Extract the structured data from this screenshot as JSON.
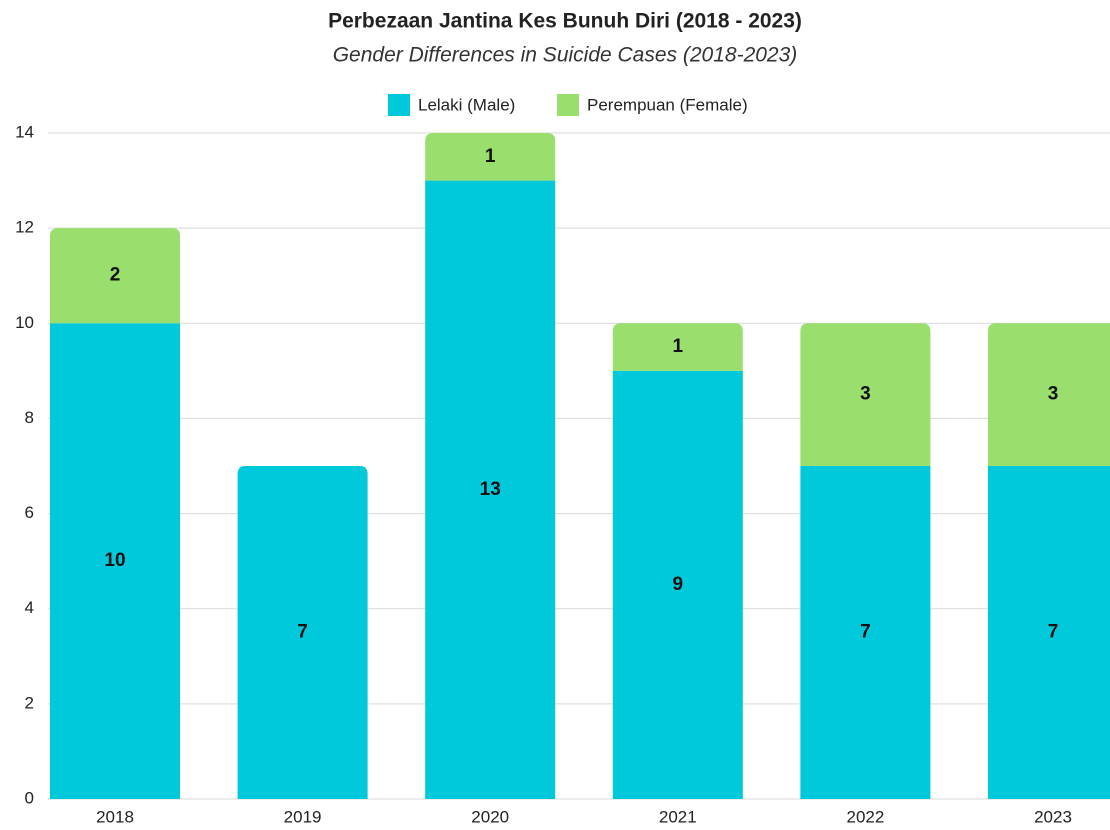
{
  "chart_data": {
    "type": "stacked_bar",
    "title": "Perbezaan Jantina Kes Bunuh Diri (2018 - 2023)",
    "subtitle": "Gender Differences in Suicide Cases (2018-2023)",
    "categories": [
      "2018",
      "2019",
      "2020",
      "2021",
      "2022",
      "2023"
    ],
    "series": [
      {
        "name": "Lelaki (Male)",
        "color": "#00c9db",
        "values": [
          10,
          7,
          13,
          9,
          7,
          7
        ]
      },
      {
        "name": "Perempuan (Female)",
        "color": "#9ade6e",
        "values": [
          2,
          null,
          1,
          1,
          3,
          3
        ]
      }
    ],
    "ylim": [
      0,
      14
    ],
    "yticks": [
      0,
      2,
      4,
      6,
      8,
      10,
      12,
      14
    ],
    "grid": true,
    "legend": "top"
  }
}
